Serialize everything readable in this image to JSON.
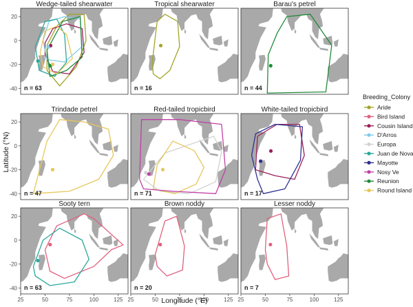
{
  "chart_data": {
    "type": "map-panels",
    "xlabel": "Longitude (°E)",
    "ylabel": "Latitude (°N)",
    "xlim": [
      25,
      135
    ],
    "ylim": [
      -45,
      27
    ],
    "xticks": [
      25,
      50,
      75,
      100,
      125
    ],
    "yticks": [
      20,
      0,
      -20,
      -40
    ],
    "legend": {
      "title": "Breeding_Colony",
      "placement": "right",
      "entries": [
        {
          "name": "Aride",
          "color": "#a3a42a"
        },
        {
          "name": "Bird Island",
          "color": "#e0607e"
        },
        {
          "name": "Cousin Island",
          "color": "#9b1f5a"
        },
        {
          "name": "D'Arros",
          "color": "#7ecbe8"
        },
        {
          "name": "Europa",
          "color": "#d2d2d2"
        },
        {
          "name": "Juan de Nova",
          "color": "#2aa89a"
        },
        {
          "name": "Mayotte",
          "color": "#2e2f8f"
        },
        {
          "name": "Nosy Ve",
          "color": "#c03fa6"
        },
        {
          "name": "Reunion",
          "color": "#1f8a3a"
        },
        {
          "name": "Round Island",
          "color": "#e6c65a"
        }
      ]
    },
    "panels": [
      {
        "title": "Wedge-tailed shearwater",
        "n": "n = 63",
        "colonies": [
          {
            "colony": "Aride",
            "point": [
              55.7,
              -4.2
            ],
            "range": [
              [
                52,
                -4
              ],
              [
                62,
                12
              ],
              [
                75,
                22
              ],
              [
                90,
                22
              ],
              [
                92,
                0
              ],
              [
                82,
                -22
              ],
              [
                65,
                -38
              ],
              [
                52,
                -25
              ]
            ]
          },
          {
            "colony": "Cousin Island",
            "point": [
              55.7,
              -4.3
            ],
            "range": [
              [
                50,
                -2
              ],
              [
                58,
                10
              ],
              [
                72,
                14
              ],
              [
                88,
                10
              ],
              [
                90,
                -10
              ],
              [
                75,
                -28
              ],
              [
                58,
                -26
              ],
              [
                50,
                -12
              ]
            ]
          },
          {
            "colony": "D'Arros",
            "point": [
              53.2,
              -5.4
            ],
            "range": [
              [
                48,
                0
              ],
              [
                54,
                16
              ],
              [
                70,
                20
              ],
              [
                86,
                18
              ],
              [
                88,
                -5
              ],
              [
                70,
                -18
              ],
              [
                52,
                -16
              ]
            ]
          },
          {
            "colony": "Juan de Nova",
            "point": [
              42.7,
              -17.1
            ],
            "range": [
              [
                40,
                -5
              ],
              [
                50,
                16
              ],
              [
                62,
                18
              ],
              [
                70,
                5
              ],
              [
                72,
                -18
              ],
              [
                60,
                -30
              ],
              [
                44,
                -25
              ]
            ]
          },
          {
            "colony": "Reunion",
            "point": [
              55.5,
              -21.1
            ],
            "range": [
              [
                52,
                -8
              ],
              [
                68,
                16
              ],
              [
                86,
                20
              ],
              [
                88,
                -14
              ],
              [
                72,
                -25
              ],
              [
                55,
                -30
              ]
            ]
          },
          {
            "colony": "Round Island",
            "point": [
              57.8,
              -19.9
            ],
            "range": [
              [
                45,
                -10
              ],
              [
                50,
                8
              ],
              [
                62,
                12
              ],
              [
                72,
                5
              ],
              [
                78,
                -15
              ],
              [
                62,
                -28
              ],
              [
                48,
                -22
              ]
            ]
          }
        ]
      },
      {
        "title": "Tropical shearwater",
        "n": "n = 16",
        "colonies": [
          {
            "colony": "Aride",
            "point": [
              55.7,
              -4.2
            ],
            "range": [
              [
                47,
                -18
              ],
              [
                52,
                16
              ],
              [
                60,
                22
              ],
              [
                73,
                16
              ],
              [
                75,
                -5
              ],
              [
                65,
                -25
              ],
              [
                55,
                -32
              ],
              [
                48,
                -28
              ]
            ]
          }
        ]
      },
      {
        "title": "Barau's petrel",
        "n": "n = 44",
        "colonies": [
          {
            "colony": "Reunion",
            "point": [
              55.5,
              -21.1
            ],
            "range": [
              [
                52,
                -44
              ],
              [
                53,
                -12
              ],
              [
                62,
                6
              ],
              [
                72,
                20
              ],
              [
                96,
                22
              ],
              [
                118,
                -4
              ],
              [
                112,
                -43
              ]
            ]
          }
        ]
      },
      {
        "title": "Trindade petrel",
        "n": "n = 47",
        "colonies": [
          {
            "colony": "Round Island",
            "point": [
              57.8,
              -19.9
            ],
            "range": [
              [
                38,
                -40
              ],
              [
                45,
                -18
              ],
              [
                52,
                4
              ],
              [
                65,
                22
              ],
              [
                90,
                20
              ],
              [
                115,
                14
              ],
              [
                120,
                -8
              ],
              [
                105,
                -28
              ],
              [
                75,
                -38
              ]
            ]
          }
        ]
      },
      {
        "title": "Red-tailed tropicbird",
        "n": "n = 71",
        "colonies": [
          {
            "colony": "Europa",
            "point": [
              40.4,
              -22.4
            ],
            "range": [
              [
                38,
                -28
              ],
              [
                60,
                -6
              ],
              [
                110,
                8
              ],
              [
                118,
                -5
              ],
              [
                112,
                -30
              ],
              [
                85,
                -40
              ],
              [
                55,
                -38
              ]
            ]
          },
          {
            "colony": "Round Island",
            "point": [
              57.8,
              -19.9
            ],
            "range": [
              [
                48,
                -36
              ],
              [
                52,
                -16
              ],
              [
                68,
                4
              ],
              [
                90,
                -4
              ],
              [
                100,
                -18
              ],
              [
                92,
                -32
              ],
              [
                70,
                -40
              ]
            ]
          },
          {
            "colony": "Nosy Ve",
            "point": [
              43.6,
              -23.6
            ],
            "range": [
              [
                34,
                -28
              ],
              [
                36,
                22
              ],
              [
                75,
                22
              ],
              [
                118,
                18
              ],
              [
                122,
                -20
              ],
              [
                112,
                -40
              ],
              [
                68,
                -38
              ],
              [
                38,
                -36
              ]
            ]
          }
        ]
      },
      {
        "title": "White-tailed tropicbird",
        "n": "n = 17",
        "colonies": [
          {
            "colony": "Cousin Island",
            "point": [
              55.7,
              -4.3
            ],
            "range": [
              [
                40,
                -20
              ],
              [
                42,
                8
              ],
              [
                62,
                18
              ],
              [
                85,
                18
              ],
              [
                90,
                -8
              ],
              [
                80,
                -28
              ],
              [
                60,
                -25
              ]
            ]
          },
          {
            "colony": "Mayotte",
            "point": [
              45.2,
              -12.8
            ],
            "range": [
              [
                36,
                -8
              ],
              [
                40,
                10
              ],
              [
                60,
                18
              ],
              [
                88,
                16
              ],
              [
                86,
                -12
              ],
              [
                70,
                -36
              ],
              [
                48,
                -40
              ],
              [
                42,
                -28
              ]
            ]
          }
        ]
      },
      {
        "title": "Sooty tern",
        "n": "n = 63",
        "colonies": [
          {
            "colony": "Bird Island",
            "point": [
              55.2,
              -3.7
            ],
            "range": [
              [
                50,
                -8
              ],
              [
                62,
                12
              ],
              [
                90,
                22
              ],
              [
                100,
                18
              ],
              [
                130,
                -4
              ],
              [
                118,
                -8
              ],
              [
                100,
                -22
              ],
              [
                70,
                -32
              ],
              [
                55,
                -26
              ]
            ]
          },
          {
            "colony": "Juan de Nova",
            "point": [
              42.7,
              -17.1
            ],
            "range": [
              [
                38,
                -22
              ],
              [
                48,
                0
              ],
              [
                65,
                10
              ],
              [
                88,
                0
              ],
              [
                95,
                -16
              ],
              [
                80,
                -35
              ],
              [
                55,
                -38
              ],
              [
                40,
                -30
              ]
            ]
          }
        ]
      },
      {
        "title": "Brown noddy",
        "n": "n = 20",
        "colonies": [
          {
            "colony": "Bird Island",
            "point": [
              55.2,
              -3.7
            ],
            "range": [
              [
                50,
                -12
              ],
              [
                60,
                16
              ],
              [
                72,
                20
              ],
              [
                80,
                -5
              ],
              [
                78,
                -25
              ],
              [
                62,
                -30
              ],
              [
                52,
                -22
              ]
            ]
          }
        ]
      },
      {
        "title": "Lesser noddy",
        "n": "n = 7",
        "colonies": [
          {
            "colony": "Bird Island",
            "point": [
              55.2,
              -3.7
            ],
            "range": [
              [
                50,
                -8
              ],
              [
                52,
                18
              ],
              [
                66,
                22
              ],
              [
                72,
                -5
              ],
              [
                74,
                -30
              ],
              [
                60,
                -33
              ],
              [
                52,
                -20
              ]
            ]
          }
        ]
      }
    ]
  }
}
